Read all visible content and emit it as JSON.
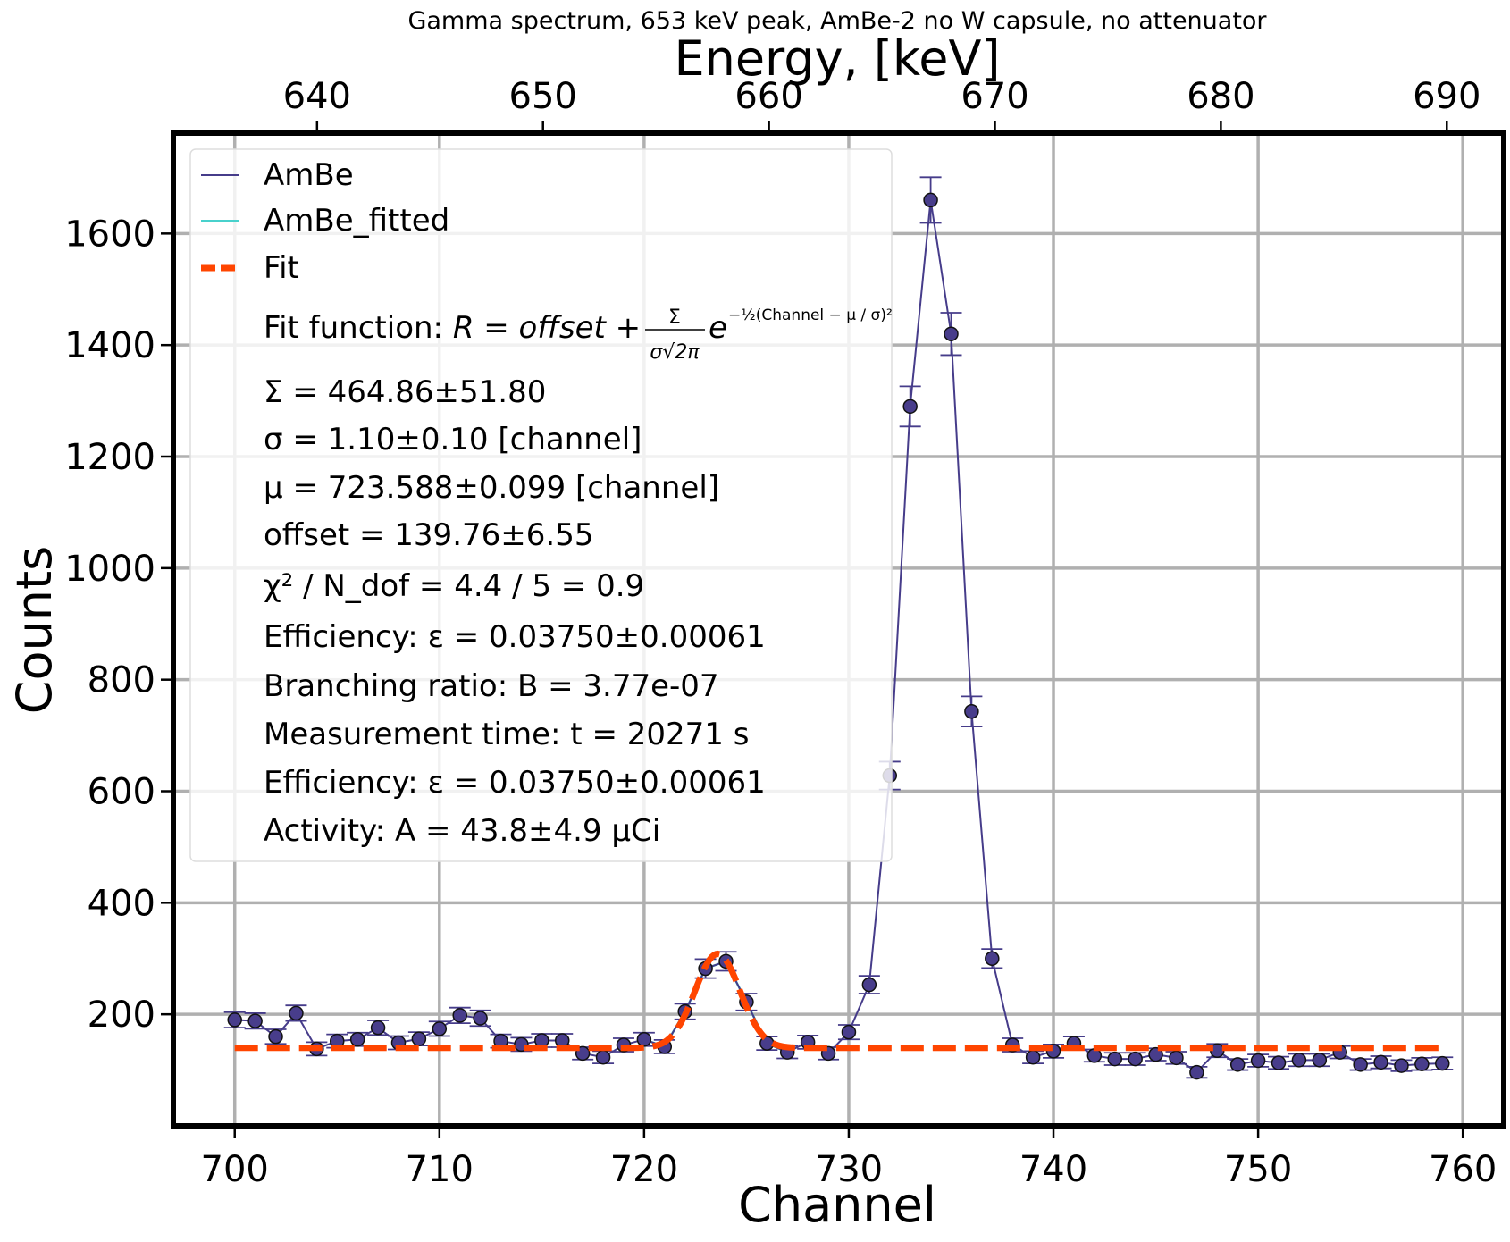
{
  "chart_data": {
    "type": "scatter",
    "title": "Gamma spectrum, 653 keV peak, AmBe-2 no W capsule, no attenuator",
    "xlabel": "Channel",
    "ylabel": "Counts",
    "top_xlabel": "Energy, [keV]",
    "xlim": [
      697,
      762
    ],
    "ylim": [
      0,
      1780
    ],
    "top_xlim": [
      633.64,
      692.52
    ],
    "x_ticks": [
      700,
      710,
      720,
      730,
      740,
      750,
      760
    ],
    "y_ticks": [
      200,
      400,
      600,
      800,
      1000,
      1200,
      1400,
      1600
    ],
    "top_x_ticks": [
      640,
      650,
      660,
      670,
      680,
      690
    ],
    "grid": true,
    "legend_position": "top-left",
    "colors": {
      "data": "#463c8a",
      "data_fill": "#483d8b",
      "fitted": "#48d1cc",
      "fit": "#ff4500",
      "grid": "#b0b0b0",
      "legend_border": "#dddddd"
    },
    "series": [
      {
        "name": "AmBe",
        "style": "points-with-errorbars",
        "x": [
          700,
          701,
          702,
          703,
          704,
          705,
          706,
          707,
          708,
          709,
          710,
          711,
          712,
          713,
          714,
          715,
          716,
          717,
          718,
          719,
          720,
          721,
          722,
          723,
          724,
          725,
          726,
          727,
          728,
          729,
          730,
          731,
          732,
          733,
          734,
          735,
          736,
          737,
          738,
          739,
          740,
          741,
          742,
          743,
          744,
          745,
          746,
          747,
          748,
          749,
          750,
          751,
          752,
          753,
          754,
          755,
          756,
          757,
          758,
          759
        ],
        "y": [
          190,
          188,
          160,
          202,
          138,
          152,
          155,
          176,
          149,
          156,
          174,
          198,
          193,
          152,
          146,
          153,
          153,
          130,
          123,
          145,
          155,
          142,
          205,
          282,
          295,
          222,
          148,
          132,
          150,
          130,
          168,
          253,
          628,
          1290,
          1660,
          1420,
          743,
          300,
          145,
          123,
          134,
          148,
          126,
          120,
          120,
          128,
          122,
          96,
          135,
          110,
          117,
          113,
          118,
          118,
          132,
          110,
          114,
          108,
          111,
          112
        ],
        "yerr": [
          14,
          14,
          13,
          14,
          12,
          12,
          12,
          13,
          12,
          12,
          13,
          14,
          14,
          12,
          12,
          12,
          12,
          11,
          11,
          12,
          12,
          12,
          14,
          17,
          17,
          15,
          12,
          11,
          12,
          11,
          13,
          16,
          25,
          36,
          41,
          38,
          27,
          17,
          12,
          11,
          12,
          12,
          11,
          11,
          11,
          11,
          11,
          10,
          12,
          10,
          11,
          11,
          11,
          11,
          11,
          10,
          11,
          10,
          11,
          11
        ]
      },
      {
        "name": "AmBe_fitted",
        "style": "line",
        "x": [
          720,
          721,
          722,
          723,
          724,
          725,
          726,
          727
        ],
        "y": [
          155,
          142,
          205,
          282,
          295,
          222,
          148,
          132
        ]
      },
      {
        "name": "Fit",
        "style": "dashed-line",
        "function": "gaussian_plus_offset",
        "Sigma": 464.86,
        "sigma": 1.1,
        "mu": 723.588,
        "offset": 139.76,
        "x_range": [
          700,
          759
        ]
      }
    ],
    "legend": {
      "entries": [
        {
          "label": "AmBe",
          "style": "line",
          "color": "#463c8a"
        },
        {
          "label": "AmBe_fitted",
          "style": "line",
          "color": "#48d1cc"
        },
        {
          "label": "Fit",
          "style": "dashed",
          "color": "#ff4500"
        }
      ],
      "fit_function_prefix": "Fit function: ",
      "fit_formula_lhs": "R = offset + ",
      "fit_formula_num": "Σ",
      "fit_formula_den": "σ√2π",
      "fit_formula_e": "e",
      "fit_formula_exponent": "−½(Channel − μ / σ)²",
      "annotations": [
        "Σ = 464.86±51.80",
        "σ = 1.10±0.10 [channel]",
        "μ = 723.588±0.099 [channel]",
        "offset = 139.76±6.55",
        "χ² / N_dof = 4.4 / 5 = 0.9",
        "Efficiency: ε = 0.03750±0.00061",
        "Branching ratio: B = 3.77e-07",
        "Measurement time: t = 20271 s",
        "Efficiency: ε = 0.03750±0.00061",
        "Activity: A = 43.8±4.9 μCi"
      ]
    }
  }
}
